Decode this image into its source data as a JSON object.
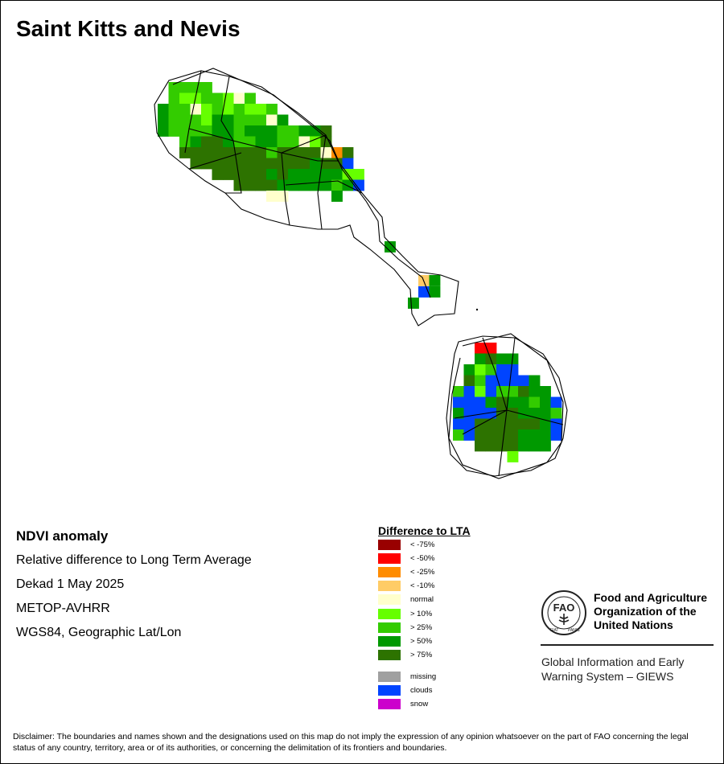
{
  "map_title": "Saint Kitts and Nevis",
  "info": {
    "title": "NDVI anomaly",
    "lines": [
      "Relative difference to Long Term Average",
      "Dekad 1 May 2025",
      "METOP-AVHRR",
      "WGS84, Geographic Lat/Lon"
    ]
  },
  "legend": {
    "title": "Difference to LTA",
    "classes": [
      {
        "label": "< -75%",
        "color": "#990000"
      },
      {
        "label": "< -50%",
        "color": "#ff0000"
      },
      {
        "label": "< -25%",
        "color": "#ff8c00"
      },
      {
        "label": "< -10%",
        "color": "#ffcc66"
      },
      {
        "label": "normal",
        "color": "#ffffcc"
      },
      {
        "label": "> 10%",
        "color": "#66ff00"
      },
      {
        "label": "> 25%",
        "color": "#33cc00"
      },
      {
        "label": "> 50%",
        "color": "#009900"
      },
      {
        "label": "> 75%",
        "color": "#2d7300"
      }
    ],
    "extra_classes": [
      {
        "label": "missing",
        "color": "#a0a0a0"
      },
      {
        "label": "clouds",
        "color": "#0044ff"
      },
      {
        "label": "snow",
        "color": "#cc00cc"
      }
    ]
  },
  "org": {
    "logo_icon": "fao-logo",
    "fao_name": "Food and Agriculture Organization of the United Nations",
    "giews_name": "Global Information and Early Warning System – GIEWS"
  },
  "disclaimer": "Disclaimer: The boundaries and names shown and the designations used on this map do not imply the expression of any opinion whatsoever on the part of FAO concerning the legal status of any country, territory, area or of its authorities, or concerning the delimitation of its frontiers and boundaries."
}
